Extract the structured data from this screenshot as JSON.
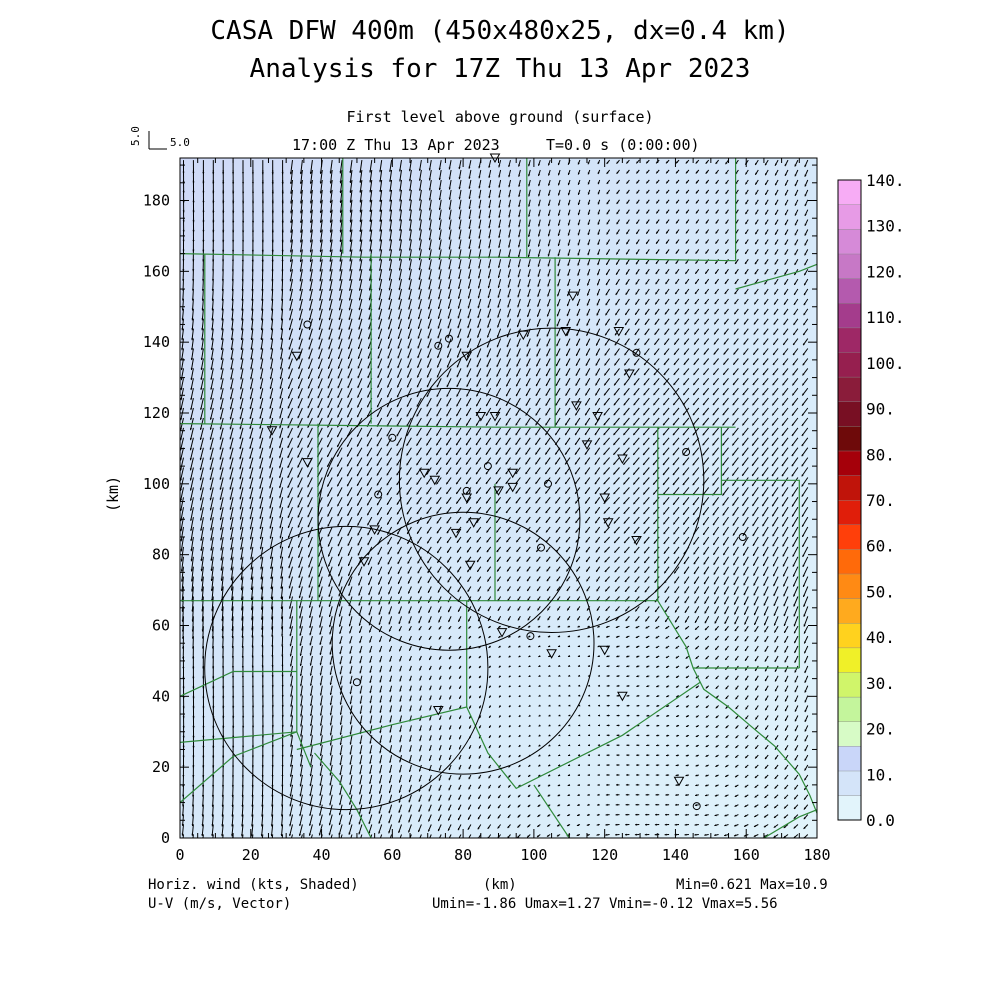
{
  "title_line1": "CASA DFW 400m (450x480x25, dx=0.4 km)",
  "title_line2": "Analysis for 17Z Thu 13 Apr 2023",
  "subtitle_level": "First level above ground (surface)",
  "subtitle_time": "17:00 Z Thu 13 Apr 2023",
  "subtitle_tstep": "T=0.0 s (0:00:00)",
  "vector_ref": {
    "vertical_label": "5.0",
    "horizontal_label": "5.0"
  },
  "axes": {
    "x_label": "(km)",
    "y_label": "(km)",
    "x_range": [
      0,
      180
    ],
    "y_range": [
      0,
      192
    ],
    "x_ticks": [
      "0",
      "20",
      "40",
      "60",
      "80",
      "100",
      "120",
      "140",
      "160",
      "180"
    ],
    "y_ticks": [
      "0",
      "20",
      "40",
      "60",
      "80",
      "100",
      "120",
      "140",
      "160",
      "180"
    ]
  },
  "colorbar": {
    "labels": [
      "0.0",
      "10.",
      "20.",
      "30.",
      "40.",
      "50.",
      "60.",
      "70.",
      "80.",
      "90.",
      "100.",
      "110.",
      "120.",
      "130.",
      "140."
    ],
    "colors": [
      "#e2f4fb",
      "#d4e4f9",
      "#c9d6f9",
      "#d7fbc6",
      "#c4f59c",
      "#d0f56a",
      "#f0f028",
      "#ffd21e",
      "#ffaa1e",
      "#ff8a14",
      "#ff6a0a",
      "#ff3f0a",
      "#e01e0a",
      "#c0140a",
      "#a5000a",
      "#6e0a0a",
      "#780f23",
      "#8a1c3a",
      "#961f4f",
      "#9e2866",
      "#a43c8c",
      "#b45aae",
      "#c778c6",
      "#d68ad8",
      "#e79be6",
      "#f7acf5"
    ]
  },
  "footer": {
    "left_line1": "Horiz. wind (kts, Shaded)",
    "left_line2": "U-V (m/s, Vector)",
    "center": "(km)",
    "right_line1": "Min=0.621 Max=10.9",
    "right_line2": "Umin=-1.86 Umax=1.27 Vmin=-0.12 Vmax=5.56"
  },
  "radar_rings_km": [
    {
      "cx": 80,
      "cy": 55,
      "r": 37
    },
    {
      "cx": 105,
      "cy": 101,
      "r": 43
    },
    {
      "cx": 47,
      "cy": 48,
      "r": 40
    },
    {
      "cx": 76,
      "cy": 90,
      "r": 37
    }
  ],
  "stations": [
    {
      "x": 36,
      "y": 145,
      "sym": "circle"
    },
    {
      "x": 33,
      "y": 136,
      "sym": "triangle"
    },
    {
      "x": 26,
      "y": 115,
      "sym": "triangle"
    },
    {
      "x": 36,
      "y": 106,
      "sym": "triangle"
    },
    {
      "x": 60,
      "y": 113,
      "sym": "circle"
    },
    {
      "x": 56,
      "y": 97,
      "sym": "circle"
    },
    {
      "x": 55,
      "y": 87,
      "sym": "triangle"
    },
    {
      "x": 52,
      "y": 78,
      "sym": "triangle"
    },
    {
      "x": 50,
      "y": 44,
      "sym": "circle"
    },
    {
      "x": 73,
      "y": 139,
      "sym": "circle"
    },
    {
      "x": 76,
      "y": 141,
      "sym": "circle"
    },
    {
      "x": 81,
      "y": 136,
      "sym": "triangle"
    },
    {
      "x": 85,
      "y": 119,
      "sym": "triangle"
    },
    {
      "x": 89,
      "y": 119,
      "sym": "triangle"
    },
    {
      "x": 69,
      "y": 103,
      "sym": "triangle"
    },
    {
      "x": 72,
      "y": 101,
      "sym": "triangle"
    },
    {
      "x": 81,
      "y": 98,
      "sym": "circle"
    },
    {
      "x": 81,
      "y": 96,
      "sym": "triangle"
    },
    {
      "x": 87,
      "y": 105,
      "sym": "circle"
    },
    {
      "x": 90,
      "y": 98,
      "sym": "triangle"
    },
    {
      "x": 94,
      "y": 103,
      "sym": "triangle"
    },
    {
      "x": 94,
      "y": 99,
      "sym": "triangle"
    },
    {
      "x": 83,
      "y": 89,
      "sym": "triangle"
    },
    {
      "x": 78,
      "y": 86,
      "sym": "triangle"
    },
    {
      "x": 82,
      "y": 77,
      "sym": "triangle"
    },
    {
      "x": 104,
      "y": 100,
      "sym": "circle"
    },
    {
      "x": 102,
      "y": 82,
      "sym": "circle"
    },
    {
      "x": 91,
      "y": 58,
      "sym": "triangle"
    },
    {
      "x": 99,
      "y": 57,
      "sym": "circle"
    },
    {
      "x": 105,
      "y": 52,
      "sym": "triangle"
    },
    {
      "x": 73,
      "y": 36,
      "sym": "triangle"
    },
    {
      "x": 97,
      "y": 142,
      "sym": "triangle"
    },
    {
      "x": 111,
      "y": 153,
      "sym": "triangle"
    },
    {
      "x": 109,
      "y": 143,
      "sym": "triangle"
    },
    {
      "x": 124,
      "y": 143,
      "sym": "triangle"
    },
    {
      "x": 129,
      "y": 137,
      "sym": "circle"
    },
    {
      "x": 127,
      "y": 131,
      "sym": "triangle"
    },
    {
      "x": 112,
      "y": 122,
      "sym": "triangle"
    },
    {
      "x": 118,
      "y": 119,
      "sym": "triangle"
    },
    {
      "x": 115,
      "y": 111,
      "sym": "triangle"
    },
    {
      "x": 125,
      "y": 107,
      "sym": "triangle"
    },
    {
      "x": 120,
      "y": 96,
      "sym": "triangle"
    },
    {
      "x": 121,
      "y": 89,
      "sym": "triangle"
    },
    {
      "x": 129,
      "y": 84,
      "sym": "triangle"
    },
    {
      "x": 120,
      "y": 53,
      "sym": "triangle"
    },
    {
      "x": 125,
      "y": 40,
      "sym": "triangle"
    },
    {
      "x": 143,
      "y": 109,
      "sym": "circle"
    },
    {
      "x": 159,
      "y": 85,
      "sym": "circle"
    },
    {
      "x": 141,
      "y": 16,
      "sym": "triangle"
    },
    {
      "x": 146,
      "y": 9,
      "sym": "circle"
    },
    {
      "x": 89,
      "y": 192,
      "sym": "triangle"
    }
  ],
  "boundaries_km": [
    [
      [
        0,
        165
      ],
      [
        52,
        164
      ],
      [
        90,
        164
      ],
      [
        157,
        163
      ],
      [
        157,
        192
      ]
    ],
    [
      [
        0,
        117
      ],
      [
        90,
        116
      ],
      [
        157,
        116
      ]
    ],
    [
      [
        0,
        67
      ],
      [
        40,
        67
      ],
      [
        89,
        67
      ],
      [
        135,
        67
      ],
      [
        135,
        116
      ]
    ],
    [
      [
        46,
        192
      ],
      [
        46,
        165
      ]
    ],
    [
      [
        54,
        165
      ],
      [
        54,
        117
      ]
    ],
    [
      [
        98,
        192
      ],
      [
        98,
        164
      ]
    ],
    [
      [
        106,
        164
      ],
      [
        106,
        116
      ]
    ],
    [
      [
        7,
        165
      ],
      [
        7,
        117
      ]
    ],
    [
      [
        39,
        117
      ],
      [
        39,
        67
      ]
    ],
    [
      [
        33,
        67
      ],
      [
        33,
        30
      ],
      [
        37,
        20
      ]
    ],
    [
      [
        0,
        27
      ],
      [
        33,
        30
      ]
    ],
    [
      [
        0,
        10
      ],
      [
        15,
        23
      ],
      [
        33,
        30
      ]
    ],
    [
      [
        0,
        40
      ],
      [
        15,
        47
      ],
      [
        33,
        47
      ]
    ],
    [
      [
        33,
        25
      ],
      [
        60,
        32
      ],
      [
        81,
        37
      ],
      [
        81,
        67
      ]
    ],
    [
      [
        81,
        37
      ],
      [
        87,
        24
      ],
      [
        95,
        14
      ],
      [
        125,
        29
      ],
      [
        147,
        44
      ]
    ],
    [
      [
        89,
        67
      ],
      [
        89,
        100
      ]
    ],
    [
      [
        135,
        97
      ],
      [
        153,
        97
      ],
      [
        153,
        116
      ]
    ],
    [
      [
        153,
        101
      ],
      [
        175,
        101
      ],
      [
        175,
        48
      ]
    ],
    [
      [
        145,
        48
      ],
      [
        175,
        48
      ]
    ],
    [
      [
        157,
        155
      ],
      [
        175,
        160
      ],
      [
        180,
        162
      ]
    ],
    [
      [
        135,
        67
      ],
      [
        143,
        54
      ],
      [
        145,
        48
      ],
      [
        148,
        42
      ],
      [
        155,
        37
      ],
      [
        162,
        31
      ],
      [
        168,
        26
      ],
      [
        175,
        18
      ],
      [
        178,
        12
      ],
      [
        180,
        7
      ]
    ],
    [
      [
        100,
        15
      ],
      [
        110,
        0
      ]
    ],
    [
      [
        38,
        24
      ],
      [
        45,
        16
      ],
      [
        50,
        8
      ],
      [
        54,
        0
      ]
    ],
    [
      [
        165,
        0
      ],
      [
        175,
        6
      ],
      [
        180,
        8
      ]
    ]
  ]
}
